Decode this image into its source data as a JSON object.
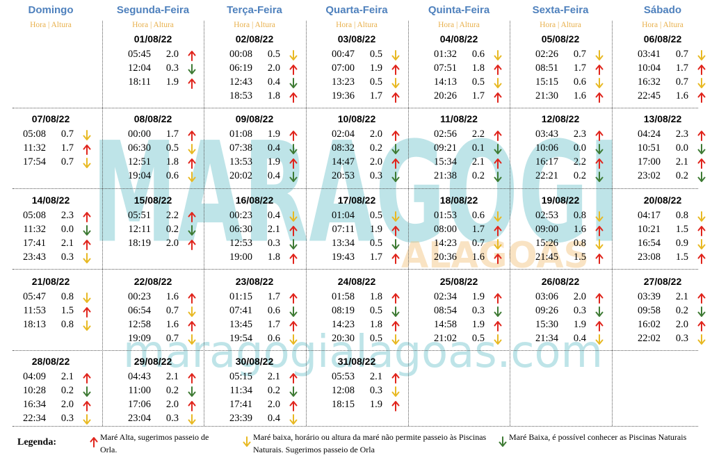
{
  "header": {
    "days": [
      "Domingo",
      "Segunda-Feira",
      "Terça-Feira",
      "Quarta-Feira",
      "Quinta-Feira",
      "Sexta-Feira",
      "Sábado"
    ],
    "subheader": "Hora | Altura"
  },
  "colors": {
    "up": "#e0241c",
    "down_yellow": "#e8b923",
    "down_green": "#3d7a33",
    "header": "#4f81bd",
    "subheader": "#e8b04c"
  },
  "watermark": {
    "title": "MARAGOGI",
    "region": "ALAGOAS",
    "site": "maragogialagoas.com"
  },
  "weeks": [
    [
      null,
      {
        "date": "01/08/22",
        "tides": [
          [
            "05:45",
            "2.0",
            "up"
          ],
          [
            "12:04",
            "0.3",
            "down-green"
          ],
          [
            "18:11",
            "1.9",
            "up"
          ]
        ]
      },
      {
        "date": "02/08/22",
        "tides": [
          [
            "00:08",
            "0.5",
            "down-yellow"
          ],
          [
            "06:19",
            "2.0",
            "up"
          ],
          [
            "12:43",
            "0.4",
            "down-green"
          ],
          [
            "18:53",
            "1.8",
            "up"
          ]
        ]
      },
      {
        "date": "03/08/22",
        "tides": [
          [
            "00:47",
            "0.5",
            "down-yellow"
          ],
          [
            "07:00",
            "1.9",
            "up"
          ],
          [
            "13:23",
            "0.5",
            "down-yellow"
          ],
          [
            "19:36",
            "1.7",
            "up"
          ]
        ]
      },
      {
        "date": "04/08/22",
        "tides": [
          [
            "01:32",
            "0.6",
            "down-yellow"
          ],
          [
            "07:51",
            "1.8",
            "up"
          ],
          [
            "14:13",
            "0.5",
            "down-yellow"
          ],
          [
            "20:26",
            "1.7",
            "up"
          ]
        ]
      },
      {
        "date": "05/08/22",
        "tides": [
          [
            "02:26",
            "0.7",
            "down-yellow"
          ],
          [
            "08:51",
            "1.7",
            "up"
          ],
          [
            "15:15",
            "0.6",
            "down-yellow"
          ],
          [
            "21:30",
            "1.6",
            "up"
          ]
        ]
      },
      {
        "date": "06/08/22",
        "tides": [
          [
            "03:41",
            "0.7",
            "down-yellow"
          ],
          [
            "10:04",
            "1.7",
            "up"
          ],
          [
            "16:32",
            "0.7",
            "down-yellow"
          ],
          [
            "22:45",
            "1.6",
            "up"
          ]
        ]
      }
    ],
    [
      {
        "date": "07/08/22",
        "tides": [
          [
            "05:08",
            "0.7",
            "down-yellow"
          ],
          [
            "11:32",
            "1.7",
            "up"
          ],
          [
            "17:54",
            "0.7",
            "down-yellow"
          ]
        ]
      },
      {
        "date": "08/08/22",
        "tides": [
          [
            "00:00",
            "1.7",
            "up"
          ],
          [
            "06:30",
            "0.5",
            "down-yellow"
          ],
          [
            "12:51",
            "1.8",
            "up"
          ],
          [
            "19:04",
            "0.6",
            "down-yellow"
          ]
        ]
      },
      {
        "date": "09/08/22",
        "tides": [
          [
            "01:08",
            "1.9",
            "up"
          ],
          [
            "07:38",
            "0.4",
            "down-green"
          ],
          [
            "13:53",
            "1.9",
            "up"
          ],
          [
            "20:02",
            "0.4",
            "down-green"
          ]
        ]
      },
      {
        "date": "10/08/22",
        "tides": [
          [
            "02:04",
            "2.0",
            "up"
          ],
          [
            "08:32",
            "0.2",
            "down-green"
          ],
          [
            "14:47",
            "2.0",
            "up"
          ],
          [
            "20:53",
            "0.3",
            "down-green"
          ]
        ]
      },
      {
        "date": "11/08/22",
        "tides": [
          [
            "02:56",
            "2.2",
            "up"
          ],
          [
            "09:21",
            "0.1",
            "down-green"
          ],
          [
            "15:34",
            "2.1",
            "up"
          ],
          [
            "21:38",
            "0.2",
            "down-green"
          ]
        ]
      },
      {
        "date": "12/08/22",
        "tides": [
          [
            "03:43",
            "2.3",
            "up"
          ],
          [
            "10:06",
            "0.0",
            "down-green"
          ],
          [
            "16:17",
            "2.2",
            "up"
          ],
          [
            "22:21",
            "0.2",
            "down-green"
          ]
        ]
      },
      {
        "date": "13/08/22",
        "tides": [
          [
            "04:24",
            "2.3",
            "up"
          ],
          [
            "10:51",
            "0.0",
            "down-green"
          ],
          [
            "17:00",
            "2.1",
            "up"
          ],
          [
            "23:02",
            "0.2",
            "down-green"
          ]
        ]
      }
    ],
    [
      {
        "date": "14/08/22",
        "tides": [
          [
            "05:08",
            "2.3",
            "up"
          ],
          [
            "11:32",
            "0.0",
            "down-green"
          ],
          [
            "17:41",
            "2.1",
            "up"
          ],
          [
            "23:43",
            "0.3",
            "down-yellow"
          ]
        ]
      },
      {
        "date": "15/08/22",
        "tides": [
          [
            "05:51",
            "2.2",
            "up"
          ],
          [
            "12:11",
            "0.2",
            "down-green"
          ],
          [
            "18:19",
            "2.0",
            "up"
          ]
        ]
      },
      {
        "date": "16/08/22",
        "tides": [
          [
            "00:23",
            "0.4",
            "down-yellow"
          ],
          [
            "06:30",
            "2.1",
            "up"
          ],
          [
            "12:53",
            "0.3",
            "down-green"
          ],
          [
            "19:00",
            "1.8",
            "up"
          ]
        ]
      },
      {
        "date": "17/08/22",
        "tides": [
          [
            "01:04",
            "0.5",
            "down-yellow"
          ],
          [
            "07:11",
            "1.9",
            "up"
          ],
          [
            "13:34",
            "0.5",
            "down-green"
          ],
          [
            "19:43",
            "1.7",
            "up"
          ]
        ]
      },
      {
        "date": "18/08/22",
        "tides": [
          [
            "01:53",
            "0.6",
            "down-yellow"
          ],
          [
            "08:00",
            "1.7",
            "up"
          ],
          [
            "14:23",
            "0.7",
            "down-yellow"
          ],
          [
            "20:36",
            "1.6",
            "up"
          ]
        ]
      },
      {
        "date": "19/08/22",
        "tides": [
          [
            "02:53",
            "0.8",
            "down-yellow"
          ],
          [
            "09:00",
            "1.6",
            "up"
          ],
          [
            "15:26",
            "0.8",
            "down-yellow"
          ],
          [
            "21:45",
            "1.5",
            "up"
          ]
        ]
      },
      {
        "date": "20/08/22",
        "tides": [
          [
            "04:17",
            "0.8",
            "down-yellow"
          ],
          [
            "10:21",
            "1.5",
            "up"
          ],
          [
            "16:54",
            "0.9",
            "down-yellow"
          ],
          [
            "23:08",
            "1.5",
            "up"
          ]
        ]
      }
    ],
    [
      {
        "date": "21/08/22",
        "tides": [
          [
            "05:47",
            "0.8",
            "down-yellow"
          ],
          [
            "11:53",
            "1.5",
            "up"
          ],
          [
            "18:13",
            "0.8",
            "down-yellow"
          ]
        ]
      },
      {
        "date": "22/08/22",
        "tides": [
          [
            "00:23",
            "1.6",
            "up"
          ],
          [
            "06:54",
            "0.7",
            "down-yellow"
          ],
          [
            "12:58",
            "1.6",
            "up"
          ],
          [
            "19:09",
            "0.7",
            "down-yellow"
          ]
        ]
      },
      {
        "date": "23/08/22",
        "tides": [
          [
            "01:15",
            "1.7",
            "up"
          ],
          [
            "07:41",
            "0.6",
            "down-green"
          ],
          [
            "13:45",
            "1.7",
            "up"
          ],
          [
            "19:54",
            "0.6",
            "down-yellow"
          ]
        ]
      },
      {
        "date": "24/08/22",
        "tides": [
          [
            "01:58",
            "1.8",
            "up"
          ],
          [
            "08:19",
            "0.5",
            "down-green"
          ],
          [
            "14:23",
            "1.8",
            "up"
          ],
          [
            "20:30",
            "0.5",
            "down-yellow"
          ]
        ]
      },
      {
        "date": "25/08/22",
        "tides": [
          [
            "02:34",
            "1.9",
            "up"
          ],
          [
            "08:54",
            "0.3",
            "down-green"
          ],
          [
            "14:58",
            "1.9",
            "up"
          ],
          [
            "21:02",
            "0.5",
            "down-yellow"
          ]
        ]
      },
      {
        "date": "26/08/22",
        "tides": [
          [
            "03:06",
            "2.0",
            "up"
          ],
          [
            "09:26",
            "0.3",
            "down-green"
          ],
          [
            "15:30",
            "1.9",
            "up"
          ],
          [
            "21:34",
            "0.4",
            "down-yellow"
          ]
        ]
      },
      {
        "date": "27/08/22",
        "tides": [
          [
            "03:39",
            "2.1",
            "up"
          ],
          [
            "09:58",
            "0.2",
            "down-green"
          ],
          [
            "16:02",
            "2.0",
            "up"
          ],
          [
            "22:02",
            "0.3",
            "down-yellow"
          ]
        ]
      }
    ],
    [
      {
        "date": "28/08/22",
        "tides": [
          [
            "04:09",
            "2.1",
            "up"
          ],
          [
            "10:28",
            "0.2",
            "down-green"
          ],
          [
            "16:34",
            "2.0",
            "up"
          ],
          [
            "22:34",
            "0.3",
            "down-yellow"
          ]
        ]
      },
      {
        "date": "29/08/22",
        "tides": [
          [
            "04:43",
            "2.1",
            "up"
          ],
          [
            "11:00",
            "0.2",
            "down-green"
          ],
          [
            "17:06",
            "2.0",
            "up"
          ],
          [
            "23:04",
            "0.3",
            "down-yellow"
          ]
        ]
      },
      {
        "date": "30/08/22",
        "tides": [
          [
            "05:15",
            "2.1",
            "up"
          ],
          [
            "11:34",
            "0.2",
            "down-green"
          ],
          [
            "17:41",
            "2.0",
            "up"
          ],
          [
            "23:39",
            "0.4",
            "down-yellow"
          ]
        ]
      },
      {
        "date": "31/08/22",
        "tides": [
          [
            "05:53",
            "2.1",
            "up"
          ],
          [
            "12:08",
            "0.3",
            "down-yellow"
          ],
          [
            "18:15",
            "1.9",
            "up"
          ]
        ]
      },
      null,
      null,
      null
    ]
  ],
  "legend": {
    "title": "Legenda:",
    "items": [
      {
        "icon": "up",
        "text": "Maré Alta, sugerimos passeio de Orla."
      },
      {
        "icon": "down-yellow",
        "text": "Maré baixa, horário ou altura da maré não permite passeio às Piscinas Naturais. Sugerimos passeio de Orla"
      },
      {
        "icon": "down-green",
        "text": "Maré Baixa, é possível conhecer as Piscinas Naturais"
      }
    ]
  }
}
